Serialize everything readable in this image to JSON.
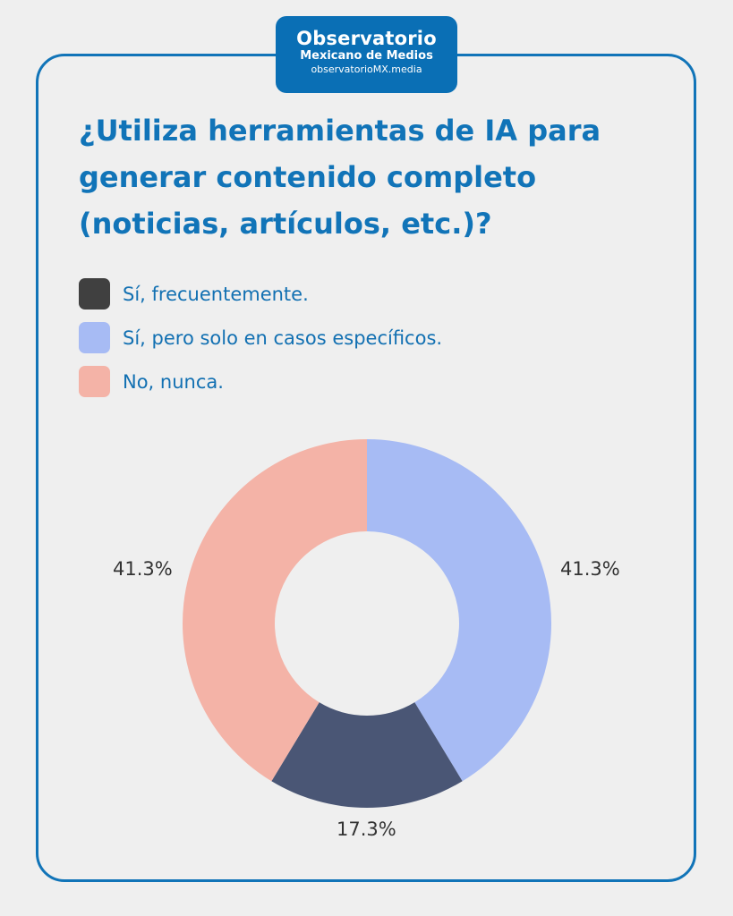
{
  "logo": {
    "line1": "Observatorio",
    "line2": "Mexicano de Medios",
    "line3": "observatorioMX.media"
  },
  "colors": {
    "accent": "#1174b8",
    "frecuentemente": "#404040",
    "frecuentemente_slice": "#4a5675",
    "especificos": "#a7bbf4",
    "nunca": "#f4b3a7"
  },
  "chart_data": {
    "type": "pie",
    "variant": "donut",
    "title": "¿Utiliza herramientas de IA para generar contenido completo (noticias, artículos, etc.)?",
    "categories": [
      "Sí, frecuentemente.",
      "Sí, pero solo en casos específicos.",
      "No, nunca."
    ],
    "values": [
      17.3,
      41.3,
      41.3
    ],
    "value_labels": [
      "17.3%",
      "41.3%",
      "41.3%"
    ],
    "unit": "%",
    "legend_position": "top-left"
  }
}
